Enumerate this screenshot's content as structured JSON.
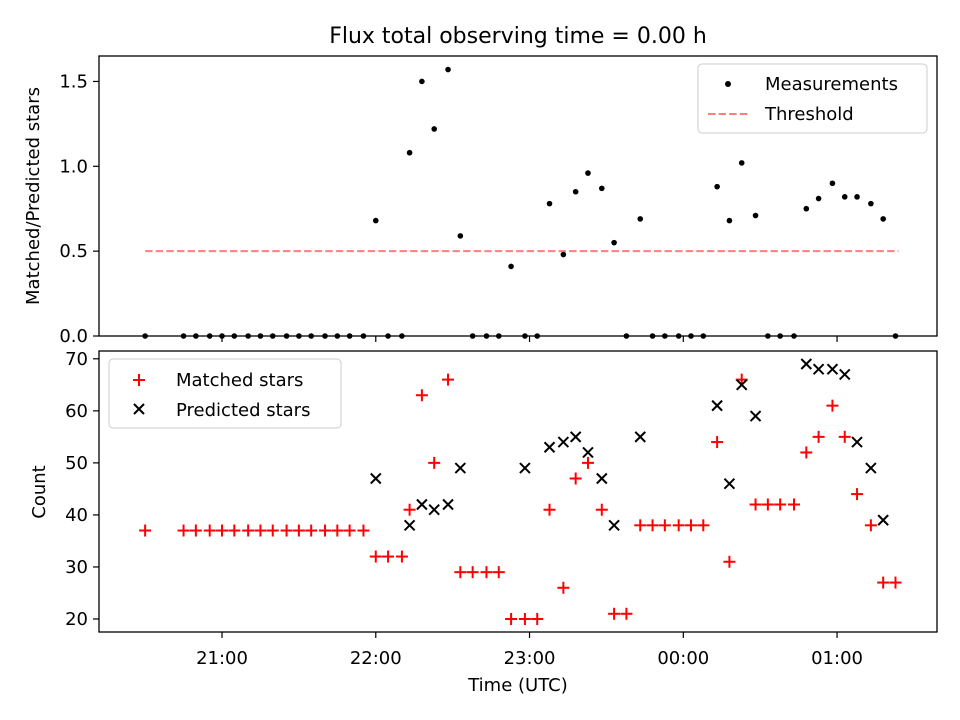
{
  "figure_title": "Flux total observing time = 0.00 h",
  "chart_data": [
    {
      "type": "scatter",
      "ylabel": "Matched/Predicted stars",
      "xlim": [
        20.2,
        1.65
      ],
      "ylim": [
        0,
        1.65
      ],
      "y_ticks": [
        "0.0",
        "0.5",
        "1.0",
        "1.5"
      ],
      "y_tick_values": [
        0,
        0.5,
        1.0,
        1.5
      ],
      "legend_position": "top-right",
      "threshold": {
        "name": "Threshold",
        "value": 0.5,
        "x_range": [
          20.5,
          1.4
        ],
        "color": "#ff7f7f",
        "style": "dashed"
      },
      "series": [
        {
          "name": "Measurements",
          "color": "#000000",
          "marker": "dot",
          "x": [
            20.5,
            20.75,
            20.83,
            20.92,
            21.0,
            21.08,
            21.17,
            21.25,
            21.33,
            21.42,
            21.5,
            21.58,
            21.67,
            21.75,
            21.83,
            21.92,
            22.0,
            22.08,
            22.17,
            22.22,
            22.3,
            22.38,
            22.47,
            22.55,
            22.63,
            22.72,
            22.8,
            22.88,
            22.97,
            23.05,
            23.13,
            23.22,
            23.3,
            23.38,
            23.47,
            23.55,
            23.63,
            23.72,
            23.8,
            23.88,
            23.97,
            24.05,
            24.13,
            24.22,
            24.3,
            24.38,
            24.47,
            24.55,
            24.63,
            24.72,
            24.8,
            24.88,
            24.97,
            25.05,
            25.13,
            25.22,
            25.3,
            25.38
          ],
          "y": [
            0,
            0,
            0,
            0,
            0,
            0,
            0,
            0,
            0,
            0,
            0,
            0,
            0,
            0,
            0,
            0,
            0.68,
            0,
            0,
            1.08,
            1.5,
            1.22,
            1.57,
            0.59,
            0,
            0,
            0,
            0.41,
            0,
            0,
            0.78,
            0.48,
            0.85,
            0.96,
            0.87,
            0.55,
            0,
            0.69,
            0,
            0,
            0,
            0,
            0,
            0.88,
            0.68,
            1.02,
            0.71,
            0,
            0,
            0,
            0.75,
            0.81,
            0.9,
            0.82,
            0.82,
            0.78,
            0.69,
            0
          ]
        }
      ]
    },
    {
      "type": "scatter",
      "xlabel": "Time (UTC)",
      "ylabel": "Count",
      "xlim": [
        20.2,
        1.65
      ],
      "ylim": [
        17.5,
        71.5
      ],
      "x_ticks": [
        "21:00",
        "22:00",
        "23:00",
        "00:00",
        "01:00"
      ],
      "y_ticks": [
        "20",
        "30",
        "40",
        "50",
        "60",
        "70"
      ],
      "y_tick_values": [
        20,
        30,
        40,
        50,
        60,
        70
      ],
      "legend_position": "top-left",
      "series": [
        {
          "name": "Matched stars",
          "color": "#ff0000",
          "marker": "plus",
          "x": [
            20.5,
            20.75,
            20.83,
            20.92,
            21.0,
            21.08,
            21.17,
            21.25,
            21.33,
            21.42,
            21.5,
            21.58,
            21.67,
            21.75,
            21.83,
            21.92,
            22.0,
            22.08,
            22.17,
            22.22,
            22.3,
            22.38,
            22.47,
            22.55,
            22.63,
            22.72,
            22.8,
            22.88,
            22.97,
            23.05,
            23.13,
            23.22,
            23.3,
            23.38,
            23.47,
            23.55,
            23.63,
            23.72,
            23.8,
            23.88,
            23.97,
            24.05,
            24.13,
            24.22,
            24.3,
            24.38,
            24.47,
            24.55,
            24.63,
            24.72,
            24.8,
            24.88,
            24.97,
            25.05,
            25.13,
            25.22,
            25.3,
            25.38
          ],
          "y": [
            37,
            37,
            37,
            37,
            37,
            37,
            37,
            37,
            37,
            37,
            37,
            37,
            37,
            37,
            37,
            37,
            32,
            32,
            32,
            41,
            63,
            50,
            66,
            29,
            29,
            29,
            29,
            20,
            20,
            20,
            41,
            26,
            47,
            50,
            41,
            21,
            21,
            38,
            38,
            38,
            38,
            38,
            38,
            54,
            31,
            66,
            42,
            42,
            42,
            42,
            52,
            55,
            61,
            55,
            44,
            38,
            27,
            27
          ]
        },
        {
          "name": "Predicted stars",
          "color": "#000000",
          "marker": "x",
          "x": [
            22.0,
            22.22,
            22.3,
            22.38,
            22.47,
            22.55,
            22.97,
            23.13,
            23.22,
            23.3,
            23.38,
            23.47,
            23.55,
            23.72,
            24.22,
            24.3,
            24.38,
            24.47,
            24.8,
            24.88,
            24.97,
            25.05,
            25.13,
            25.22,
            25.3
          ],
          "y": [
            47,
            38,
            42,
            41,
            42,
            49,
            49,
            53,
            54,
            55,
            52,
            47,
            38,
            55,
            61,
            46,
            65,
            59,
            69,
            68,
            68,
            67,
            54,
            49,
            39
          ]
        }
      ]
    }
  ]
}
